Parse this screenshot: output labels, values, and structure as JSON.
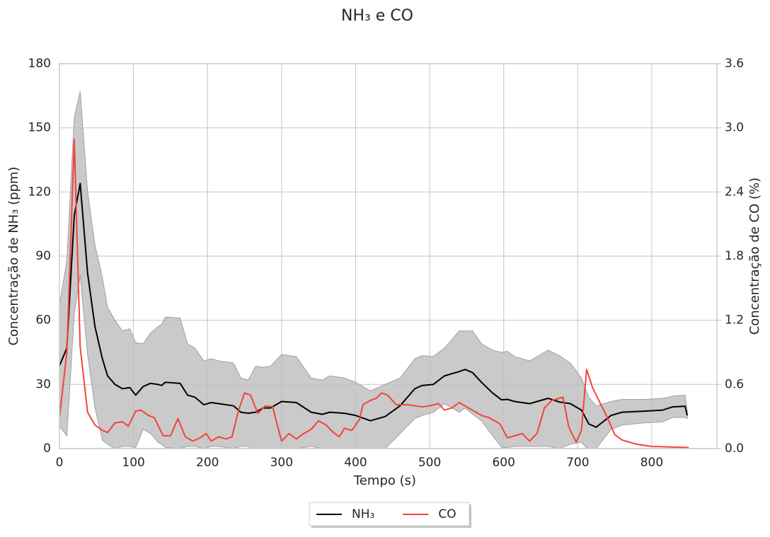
{
  "chart_data": {
    "type": "line",
    "title": "NH₃ e CO",
    "xlabel": "Tempo (s)",
    "ylabel": "Concentração de NH₃ (ppm)",
    "y2label": "Concentração de CO (%)",
    "xlim": [
      0,
      888
    ],
    "xticks": [
      0,
      100,
      200,
      300,
      400,
      500,
      600,
      700,
      800
    ],
    "ylim": [
      0,
      180
    ],
    "yticks": [
      0,
      30,
      60,
      90,
      120,
      150,
      180
    ],
    "y2lim": [
      0,
      3.6
    ],
    "y2ticks": [
      {
        "value": 0,
        "label": "0.0"
      },
      0.6,
      1.2,
      1.8,
      2.4,
      {
        "value": 3,
        "label": "3.0"
      },
      3.6
    ],
    "grid": true,
    "legend": "lower center",
    "series": [
      {
        "name": "NH₃",
        "color": "#000000",
        "x": [
          0,
          10,
          20,
          28,
          38,
          48,
          58,
          65,
          75,
          85,
          95,
          103,
          113,
          123,
          133,
          138,
          143,
          163,
          173,
          183,
          195,
          205,
          215,
          235,
          245,
          255,
          265,
          275,
          285,
          300,
          320,
          340,
          355,
          365,
          385,
          400,
          420,
          440,
          460,
          480,
          490,
          505,
          520,
          540,
          548,
          558,
          570,
          585,
          597,
          605,
          615,
          635,
          645,
          660,
          675,
          690,
          705,
          715,
          725,
          745,
          760,
          790,
          815,
          828,
          845,
          848
        ],
        "values": [
          38.7,
          47,
          109,
          124,
          82,
          57,
          42,
          34,
          30,
          28,
          28.5,
          25,
          29,
          30.5,
          30,
          29.5,
          31,
          30.5,
          25,
          24,
          20.5,
          21.5,
          21,
          20,
          17,
          16.5,
          17,
          19,
          19,
          22,
          21.5,
          17,
          16,
          17,
          16.5,
          15.5,
          13,
          15,
          20,
          28,
          29.5,
          30,
          34,
          36,
          37,
          35.5,
          31,
          26,
          22.8,
          23,
          22,
          21,
          22,
          23.5,
          21.8,
          21,
          18,
          11.5,
          10,
          15.5,
          17,
          17.5,
          18,
          19.5,
          19.8,
          15.5
        ],
        "band_upper": [
          67,
          88,
          155,
          167,
          120,
          95,
          80,
          66,
          60,
          55,
          56,
          49.5,
          49,
          54,
          57,
          58,
          61.5,
          61,
          49,
          47,
          41,
          42,
          41,
          40,
          33,
          32,
          38.5,
          38,
          38.5,
          44,
          43,
          33,
          32,
          34,
          33,
          31,
          27,
          30,
          33,
          42,
          43.5,
          43,
          47,
          55,
          55,
          55,
          49,
          46,
          45,
          45.5,
          43,
          41,
          43,
          46,
          43.5,
          40,
          33,
          24,
          20,
          22,
          23,
          23,
          23.5,
          24.5,
          25,
          17
        ],
        "band_lower": [
          10.4,
          6,
          63,
          81,
          44,
          19,
          4,
          2,
          0,
          1,
          1,
          0.5,
          9,
          7,
          3,
          2,
          0.5,
          0,
          1,
          1,
          0,
          1,
          1,
          0,
          1,
          1,
          -4.5,
          0,
          -0.5,
          0,
          0,
          1,
          0,
          0,
          0,
          0,
          -1,
          0,
          7,
          14,
          15.5,
          17,
          21,
          17,
          19,
          16,
          13,
          6,
          0.6,
          0.5,
          1,
          1,
          1,
          1,
          0,
          2,
          3,
          -1,
          0,
          9,
          11,
          12,
          12.5,
          14.5,
          14.6,
          14
        ]
      },
      {
        "name": "CO",
        "color": "#f44336",
        "axis": "y2",
        "x": [
          0,
          10,
          20,
          28,
          38,
          48,
          58,
          65,
          75,
          85,
          93,
          103,
          110,
          120,
          128,
          140,
          150,
          160,
          170,
          180,
          190,
          198,
          205,
          215,
          225,
          233,
          242,
          250,
          258,
          268,
          278,
          288,
          295,
          300,
          310,
          320,
          330,
          340,
          350,
          360,
          370,
          378,
          385,
          395,
          405,
          410,
          420,
          428,
          435,
          443,
          455,
          470,
          490,
          500,
          512,
          520,
          530,
          540,
          555,
          570,
          580,
          595,
          605,
          615,
          625,
          635,
          645,
          655,
          665,
          675,
          680,
          688,
          698,
          705,
          712,
          720,
          730,
          740,
          750,
          760,
          780,
          800,
          850
        ],
        "values": [
          0.29,
          0.9,
          2.89,
          0.95,
          0.34,
          0.22,
          0.17,
          0.15,
          0.24,
          0.25,
          0.21,
          0.35,
          0.36,
          0.31,
          0.29,
          0.12,
          0.12,
          0.28,
          0.11,
          0.07,
          0.1,
          0.14,
          0.07,
          0.11,
          0.09,
          0.11,
          0.36,
          0.52,
          0.5,
          0.33,
          0.4,
          0.39,
          0.2,
          0.07,
          0.14,
          0.09,
          0.14,
          0.18,
          0.26,
          0.22,
          0.15,
          0.11,
          0.19,
          0.17,
          0.27,
          0.41,
          0.45,
          0.47,
          0.52,
          0.5,
          0.41,
          0.41,
          0.39,
          0.4,
          0.42,
          0.36,
          0.38,
          0.43,
          0.37,
          0.31,
          0.29,
          0.23,
          0.1,
          0.12,
          0.14,
          0.07,
          0.14,
          0.38,
          0.45,
          0.47,
          0.48,
          0.2,
          0.06,
          0.17,
          0.74,
          0.57,
          0.43,
          0.29,
          0.13,
          0.08,
          0.04,
          0.02,
          0.01
        ]
      }
    ]
  }
}
